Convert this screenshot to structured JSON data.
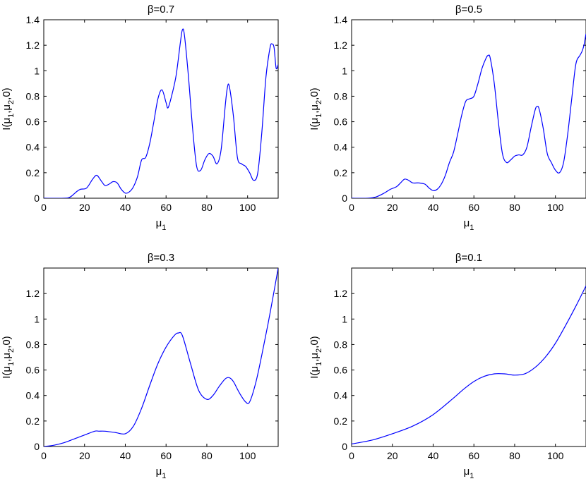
{
  "chart_data": [
    {
      "type": "line",
      "title": "β=0.7",
      "xlabel": "μ",
      "xlabel_sub": "1",
      "ylabel": "I(μ",
      "ylabel_sub1": "1",
      "ylabel_mid": ",μ",
      "ylabel_sub2": "2",
      "ylabel_end": ",0)",
      "xlim": [
        0,
        115
      ],
      "ylim": [
        0,
        1.4
      ],
      "xticks": [
        0,
        20,
        40,
        60,
        80,
        100
      ],
      "xtick_labels": [
        "0",
        "20",
        "40",
        "60",
        "80",
        "100"
      ],
      "yticks": [
        0,
        0.2,
        0.4,
        0.6,
        0.8,
        1,
        1.2,
        1.4
      ],
      "ytick_labels": [
        "0",
        "0.2",
        "0.4",
        "0.6",
        "0.8",
        "1",
        "1.2",
        "1.4"
      ],
      "grid": false,
      "series": [
        {
          "color": "#0000ff",
          "x": [
            0,
            10,
            13,
            16,
            18,
            21,
            24,
            26,
            28,
            30,
            32,
            34,
            36,
            38,
            40,
            42,
            44,
            46,
            48,
            50,
            52,
            54,
            56,
            58,
            60,
            61,
            63,
            65,
            67,
            68,
            69,
            71,
            73,
            75,
            77,
            79,
            81,
            83,
            85,
            87,
            89,
            90,
            91,
            93,
            95,
            97,
            99,
            101,
            103,
            105,
            107,
            109,
            111,
            112,
            113,
            114,
            115
          ],
          "y": [
            0,
            0,
            0.01,
            0.05,
            0.07,
            0.08,
            0.15,
            0.18,
            0.14,
            0.1,
            0.11,
            0.13,
            0.12,
            0.07,
            0.04,
            0.05,
            0.09,
            0.17,
            0.3,
            0.32,
            0.43,
            0.6,
            0.78,
            0.85,
            0.75,
            0.71,
            0.82,
            0.97,
            1.22,
            1.32,
            1.28,
            0.95,
            0.55,
            0.25,
            0.22,
            0.3,
            0.35,
            0.33,
            0.27,
            0.38,
            0.72,
            0.86,
            0.88,
            0.65,
            0.32,
            0.27,
            0.25,
            0.2,
            0.14,
            0.2,
            0.52,
            0.95,
            1.18,
            1.21,
            1.18,
            1.02,
            1.05
          ]
        }
      ]
    },
    {
      "type": "line",
      "title": "β=0.5",
      "xlabel": "μ",
      "xlabel_sub": "1",
      "ylabel": "I(μ",
      "ylabel_sub1": "1",
      "ylabel_mid": ",μ",
      "ylabel_sub2": "2",
      "ylabel_end": ",0)",
      "xlim": [
        0,
        115
      ],
      "ylim": [
        0,
        1.4
      ],
      "xticks": [
        0,
        20,
        40,
        60,
        80,
        100
      ],
      "xtick_labels": [
        "0",
        "20",
        "40",
        "60",
        "80",
        "100"
      ],
      "yticks": [
        0,
        0.2,
        0.4,
        0.6,
        0.8,
        1,
        1.2,
        1.4
      ],
      "ytick_labels": [
        "0",
        "0.2",
        "0.4",
        "0.6",
        "0.8",
        "1",
        "1.2",
        "1.4"
      ],
      "grid": false,
      "series": [
        {
          "color": "#0000ff",
          "x": [
            0,
            8,
            12,
            16,
            19,
            22,
            24,
            26,
            28,
            30,
            33,
            36,
            38,
            40,
            42,
            44,
            46,
            48,
            50,
            52,
            54,
            56,
            58,
            60,
            62,
            64,
            66,
            67,
            68,
            70,
            72,
            74,
            76,
            78,
            80,
            82,
            84,
            86,
            88,
            90,
            91,
            92,
            94,
            96,
            98,
            100,
            102,
            104,
            106,
            108,
            110,
            112,
            113,
            114,
            115
          ],
          "y": [
            0,
            0,
            0.01,
            0.04,
            0.07,
            0.09,
            0.12,
            0.15,
            0.14,
            0.12,
            0.12,
            0.11,
            0.08,
            0.06,
            0.07,
            0.11,
            0.18,
            0.28,
            0.36,
            0.5,
            0.65,
            0.76,
            0.78,
            0.8,
            0.9,
            1.02,
            1.1,
            1.12,
            1.1,
            0.9,
            0.6,
            0.35,
            0.28,
            0.3,
            0.33,
            0.34,
            0.34,
            0.4,
            0.55,
            0.69,
            0.72,
            0.7,
            0.55,
            0.35,
            0.28,
            0.22,
            0.2,
            0.28,
            0.5,
            0.78,
            1.05,
            1.12,
            1.15,
            1.2,
            1.29
          ]
        }
      ]
    },
    {
      "type": "line",
      "title": "β=0.3",
      "xlabel": "μ",
      "xlabel_sub": "1",
      "ylabel": "I(μ",
      "ylabel_sub1": "1",
      "ylabel_mid": ",μ",
      "ylabel_sub2": "2",
      "ylabel_end": ",0)",
      "xlim": [
        0,
        115
      ],
      "ylim": [
        0,
        1.4
      ],
      "xticks": [
        0,
        20,
        40,
        60,
        80,
        100
      ],
      "xtick_labels": [
        "0",
        "20",
        "40",
        "60",
        "80",
        "100"
      ],
      "yticks": [
        0,
        0.2,
        0.4,
        0.6,
        0.8,
        1,
        1.2
      ],
      "ytick_labels": [
        "0",
        "0.2",
        "0.4",
        "0.6",
        "0.8",
        "1",
        "1.2"
      ],
      "grid": false,
      "series": [
        {
          "color": "#0000ff",
          "x": [
            0,
            5,
            10,
            15,
            20,
            25,
            27,
            30,
            35,
            40,
            44,
            48,
            52,
            56,
            60,
            64,
            66,
            68,
            72,
            76,
            80,
            83,
            86,
            89,
            91,
            93,
            96,
            99,
            101,
            104,
            107,
            110,
            113,
            115
          ],
          "y": [
            0,
            0.01,
            0.03,
            0.06,
            0.09,
            0.12,
            0.12,
            0.12,
            0.11,
            0.1,
            0.16,
            0.3,
            0.48,
            0.65,
            0.78,
            0.87,
            0.89,
            0.87,
            0.65,
            0.44,
            0.37,
            0.4,
            0.47,
            0.53,
            0.54,
            0.51,
            0.42,
            0.35,
            0.35,
            0.5,
            0.72,
            0.96,
            1.22,
            1.4
          ]
        }
      ]
    },
    {
      "type": "line",
      "title": "β=0.1",
      "xlabel": "μ",
      "xlabel_sub": "1",
      "ylabel": "I(μ",
      "ylabel_sub1": "1",
      "ylabel_mid": ",μ",
      "ylabel_sub2": "2",
      "ylabel_end": ",0)",
      "xlim": [
        0,
        115
      ],
      "ylim": [
        0,
        1.4
      ],
      "xticks": [
        0,
        20,
        40,
        60,
        80,
        100
      ],
      "xtick_labels": [
        "0",
        "20",
        "40",
        "60",
        "80",
        "100"
      ],
      "yticks": [
        0,
        0.2,
        0.4,
        0.6,
        0.8,
        1,
        1.2
      ],
      "ytick_labels": [
        "0",
        "0.2",
        "0.4",
        "0.6",
        "0.8",
        "1",
        "1.2"
      ],
      "grid": false,
      "series": [
        {
          "color": "#0000ff",
          "x": [
            0,
            10,
            20,
            30,
            40,
            50,
            55,
            60,
            65,
            70,
            75,
            80,
            85,
            90,
            95,
            100,
            105,
            110,
            115
          ],
          "y": [
            0.02,
            0.05,
            0.1,
            0.16,
            0.25,
            0.38,
            0.45,
            0.51,
            0.55,
            0.57,
            0.57,
            0.56,
            0.57,
            0.62,
            0.7,
            0.81,
            0.95,
            1.1,
            1.26
          ]
        }
      ]
    }
  ]
}
